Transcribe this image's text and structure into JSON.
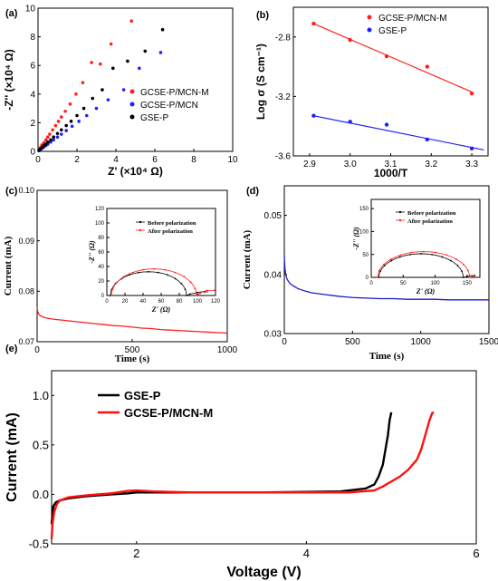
{
  "chart_data": [
    {
      "panel": "(a)",
      "type": "scatter",
      "xlabel": "Z' (×10⁴ Ω)",
      "ylabel": "-Z'' (×10⁴ Ω)",
      "xlim": [
        0,
        10
      ],
      "ylim": [
        0,
        10
      ],
      "xticks": [
        "0",
        "2",
        "4",
        "6",
        "8",
        "10"
      ],
      "yticks": [
        "0",
        "2",
        "4",
        "6",
        "8",
        "10"
      ],
      "legend": "center-left",
      "series": [
        {
          "name": "GCSE-P/MCN-M",
          "color": "#ff2020",
          "x": [
            0.05,
            0.1,
            0.15,
            0.2,
            0.3,
            0.4,
            0.5,
            0.6,
            0.75,
            0.9,
            1.05,
            1.2,
            1.4,
            1.65,
            1.95,
            2.3,
            2.75,
            3.2,
            3.75,
            4.8
          ],
          "y": [
            0.1,
            0.2,
            0.3,
            0.45,
            0.6,
            0.8,
            1.0,
            1.2,
            1.5,
            1.8,
            2.1,
            2.4,
            2.8,
            3.3,
            4.0,
            4.8,
            6.2,
            6.1,
            7.5,
            9.1
          ]
        },
        {
          "name": "GCSE-P/MCN",
          "color": "#2020ff",
          "x": [
            0.05,
            0.1,
            0.2,
            0.3,
            0.4,
            0.5,
            0.65,
            0.8,
            1.0,
            1.2,
            1.45,
            1.75,
            2.1,
            2.5,
            3.0,
            3.6,
            4.4,
            5.2,
            6.3
          ],
          "y": [
            0.05,
            0.1,
            0.2,
            0.3,
            0.4,
            0.5,
            0.65,
            0.8,
            1.0,
            1.2,
            1.45,
            1.75,
            2.1,
            2.5,
            3.0,
            3.6,
            4.3,
            5.8,
            6.9
          ]
        },
        {
          "name": "GSE-P",
          "color": "#000000",
          "x": [
            0.05,
            0.1,
            0.2,
            0.3,
            0.4,
            0.5,
            0.65,
            0.8,
            1.0,
            1.2,
            1.45,
            1.7,
            2.0,
            2.35,
            2.8,
            3.3,
            3.85,
            4.6,
            5.5,
            6.4
          ],
          "y": [
            0.07,
            0.15,
            0.25,
            0.4,
            0.5,
            0.65,
            0.8,
            1.0,
            1.25,
            1.5,
            1.8,
            2.1,
            2.5,
            3.0,
            3.7,
            4.3,
            5.8,
            6.3,
            7.0,
            8.5
          ]
        }
      ]
    },
    {
      "panel": "(b)",
      "type": "scatter",
      "xlabel": "1000/T",
      "ylabel": "Log σ (S cm⁻¹)",
      "xlim": [
        2.86,
        3.34
      ],
      "ylim": [
        -3.6,
        -2.6
      ],
      "xticks": [
        "2.9",
        "3.0",
        "3.1",
        "3.2",
        "3.3"
      ],
      "yticks": [
        "-2.8",
        "-3.2",
        "-3.6"
      ],
      "legend": "top-right",
      "series": [
        {
          "name": "GCSE-P/MCN-M",
          "color": "#ff2020",
          "x": [
            2.91,
            3.0,
            3.09,
            3.19,
            3.3
          ],
          "y": [
            -2.71,
            -2.82,
            -2.93,
            -3.0,
            -3.18
          ],
          "fit": [
            [
              2.91,
              -2.71
            ],
            [
              3.3,
              -3.17
            ]
          ]
        },
        {
          "name": "GSE-P",
          "color": "#2020ff",
          "x": [
            2.91,
            3.0,
            3.09,
            3.19,
            3.3
          ],
          "y": [
            -3.33,
            -3.37,
            -3.39,
            -3.49,
            -3.55
          ],
          "fit": [
            [
              2.91,
              -3.33
            ],
            [
              3.33,
              -3.56
            ]
          ]
        }
      ]
    },
    {
      "panel": "(c)",
      "type": "line",
      "xlabel": "Time (s)",
      "ylabel": "Current (mA)",
      "xlim": [
        0,
        1000
      ],
      "ylim": [
        0.07,
        0.1
      ],
      "xticks": [
        "0",
        "500",
        "1000"
      ],
      "yticks": [
        "0.07",
        "0.08",
        "0.09",
        "0.10"
      ],
      "series": [
        {
          "name": "",
          "color": "#ff2020",
          "x": [
            0,
            3,
            8,
            15,
            30,
            60,
            100,
            150,
            200,
            250,
            300,
            350,
            400,
            450,
            500,
            550,
            600,
            650,
            700,
            750,
            800,
            850,
            900,
            950,
            1000
          ],
          "y": [
            0.0768,
            0.076,
            0.0755,
            0.0752,
            0.0749,
            0.0746,
            0.0744,
            0.0742,
            0.074,
            0.0738,
            0.0736,
            0.0734,
            0.0732,
            0.0731,
            0.0729,
            0.0727,
            0.0726,
            0.0724,
            0.0723,
            0.0722,
            0.0721,
            0.072,
            0.0719,
            0.0718,
            0.0717
          ]
        }
      ],
      "inset": {
        "xlabel": "Z' (Ω)",
        "ylabel": "-Z'' (Ω)",
        "xlim": [
          0,
          120
        ],
        "ylim": [
          0,
          120
        ],
        "xticks": [
          "0",
          "20",
          "40",
          "60",
          "80",
          "100",
          "120"
        ],
        "yticks": [
          "0",
          "20",
          "40",
          "60",
          "80",
          "100",
          "120"
        ],
        "legend": "top-right",
        "series": [
          {
            "name": "Before polarization",
            "color": "#000000",
            "center": 46,
            "radius": 42,
            "tail": [
              [
                88,
                0
              ],
              [
                92,
                2
              ],
              [
                96,
                3
              ],
              [
                100,
                4
              ],
              [
                104,
                5
              ],
              [
                108,
                5
              ],
              [
                112,
                5
              ]
            ]
          },
          {
            "name": "After polarization",
            "color": "#ff2020",
            "center": 52,
            "radius": 47,
            "tail": [
              [
                99,
                0
              ],
              [
                103,
                3
              ],
              [
                107,
                6
              ],
              [
                111,
                7
              ],
              [
                115,
                7
              ],
              [
                119,
                7
              ]
            ]
          }
        ]
      }
    },
    {
      "panel": "(d)",
      "type": "line",
      "xlabel": "Time (s)",
      "ylabel": "Current (mA)",
      "xlim": [
        0,
        1500
      ],
      "ylim": [
        0.03,
        0.055
      ],
      "xticks": [
        "0",
        "500",
        "1000",
        "1500"
      ],
      "yticks": [
        "0.03",
        "0.04",
        "0.05"
      ],
      "series": [
        {
          "name": "",
          "color": "#1a1acc",
          "x": [
            0,
            2,
            5,
            10,
            20,
            40,
            70,
            100,
            150,
            200,
            300,
            400,
            500,
            600,
            700,
            800,
            900,
            1000,
            1100,
            1200,
            1300,
            1400,
            1500
          ],
          "y": [
            0.0432,
            0.042,
            0.041,
            0.04,
            0.0392,
            0.0385,
            0.038,
            0.0376,
            0.0372,
            0.0369,
            0.0366,
            0.0363,
            0.0361,
            0.036,
            0.0359,
            0.0359,
            0.0358,
            0.0358,
            0.0358,
            0.0357,
            0.0357,
            0.0357,
            0.0357
          ]
        }
      ],
      "inset": {
        "xlabel": "Z' (Ω)",
        "ylabel": "-Z'' (Ω)",
        "xlim": [
          0,
          170
        ],
        "ylim": [
          0,
          170
        ],
        "xticks": [
          "0",
          "50",
          "100",
          "150"
        ],
        "yticks": [
          "0",
          "50",
          "100",
          "150"
        ],
        "legend": "top-right",
        "series": [
          {
            "name": "Before polarization",
            "color": "#000000",
            "center": 78,
            "radius": 66,
            "tail": [
              [
                144,
                0
              ],
              [
                150,
                2
              ],
              [
                156,
                4
              ],
              [
                162,
                4
              ]
            ]
          },
          {
            "name": "After polarization",
            "color": "#ff2020",
            "center": 82,
            "radius": 72,
            "tail": [
              [
                154,
                0
              ],
              [
                158,
                2
              ],
              [
                162,
                3
              ]
            ]
          }
        ]
      }
    },
    {
      "panel": "(e)",
      "type": "line",
      "xlabel": "Voltage (V)",
      "ylabel": "Current (mA)",
      "xlim": [
        1.0,
        6.0
      ],
      "ylim": [
        -0.5,
        1.25
      ],
      "xticks": [
        "2",
        "4",
        "6"
      ],
      "yticks": [
        "-0.5",
        "0.0",
        "0.5",
        "1.0"
      ],
      "legend": "top-left",
      "series": [
        {
          "name": "GSE-P",
          "color": "#000000",
          "x": [
            1.0,
            1.02,
            1.05,
            1.1,
            1.2,
            1.4,
            1.7,
            1.9,
            2.0,
            2.2,
            2.6,
            3.0,
            3.5,
            4.0,
            4.4,
            4.7,
            4.8,
            4.85,
            4.9,
            4.93,
            4.96,
            4.98,
            5.0
          ],
          "y": [
            -0.3,
            -0.12,
            -0.08,
            -0.06,
            -0.04,
            -0.02,
            0.0,
            0.01,
            0.02,
            0.02,
            0.02,
            0.02,
            0.02,
            0.025,
            0.03,
            0.06,
            0.1,
            0.18,
            0.3,
            0.45,
            0.6,
            0.75,
            0.83
          ]
        },
        {
          "name": "GCSE-P/MCN-M",
          "color": "#ff1010",
          "x": [
            1.0,
            1.01,
            1.03,
            1.06,
            1.1,
            1.2,
            1.4,
            1.7,
            1.9,
            2.0,
            2.2,
            2.6,
            3.0,
            3.5,
            4.0,
            4.5,
            4.8,
            4.9,
            5.0,
            5.1,
            5.2,
            5.3,
            5.35,
            5.4,
            5.45,
            5.48,
            5.5
          ],
          "y": [
            -0.45,
            -0.3,
            -0.18,
            -0.1,
            -0.06,
            -0.03,
            -0.01,
            0.01,
            0.035,
            0.04,
            0.03,
            0.02,
            0.02,
            0.02,
            0.02,
            0.02,
            0.04,
            0.08,
            0.13,
            0.18,
            0.25,
            0.35,
            0.45,
            0.6,
            0.75,
            0.82,
            0.83
          ]
        }
      ]
    }
  ]
}
